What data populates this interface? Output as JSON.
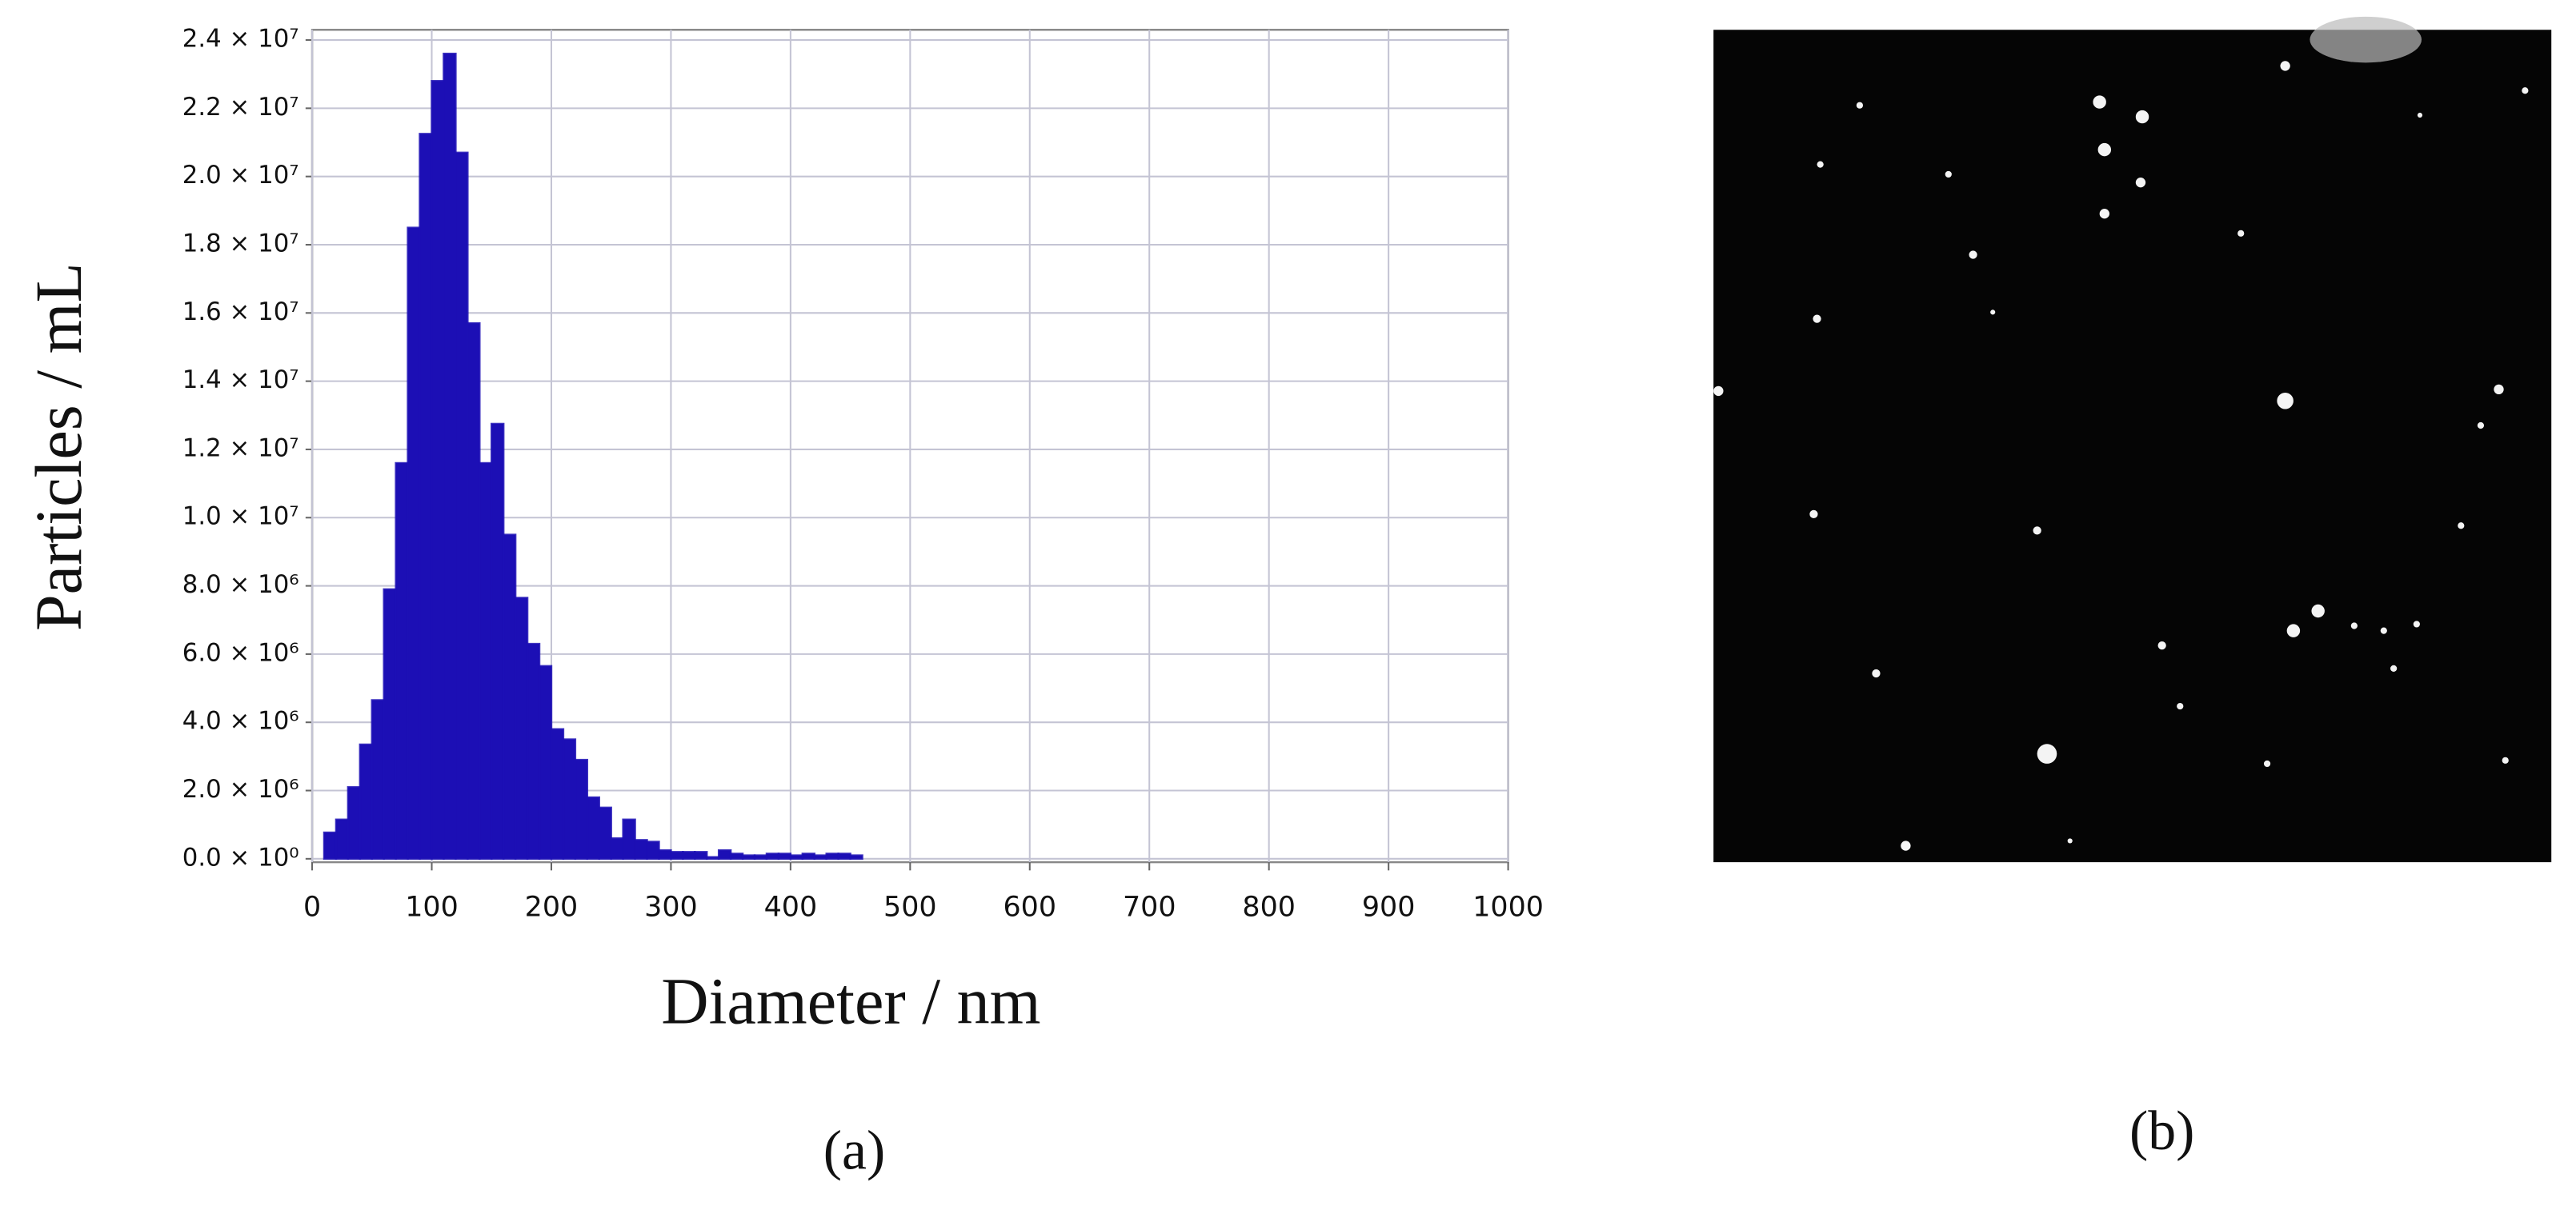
{
  "chart_data": {
    "type": "histogram",
    "ylabel": "Particles / mL",
    "xlabel": "Diameter / nm",
    "caption": "(a)",
    "color": "#1c0fb5",
    "grid": true,
    "xlim": [
      0,
      1000
    ],
    "ylim": [
      -100000,
      24300000
    ],
    "xticks": [
      0,
      100,
      200,
      300,
      400,
      500,
      600,
      700,
      800,
      900,
      1000
    ],
    "yticks": [
      {
        "value": 0,
        "label": "0.0 × 10⁰"
      },
      {
        "value": 2000000,
        "label": "2.0 × 10⁶"
      },
      {
        "value": 4000000,
        "label": "4.0 × 10⁶"
      },
      {
        "value": 6000000,
        "label": "6.0 × 10⁶"
      },
      {
        "value": 8000000,
        "label": "8.0 × 10⁶"
      },
      {
        "value": 10000000,
        "label": "1.0 × 10⁷"
      },
      {
        "value": 12000000,
        "label": "1.2 × 10⁷"
      },
      {
        "value": 14000000,
        "label": "1.4 × 10⁷"
      },
      {
        "value": 16000000,
        "label": "1.6 × 10⁷"
      },
      {
        "value": 18000000,
        "label": "1.8 × 10⁷"
      },
      {
        "value": 20000000,
        "label": "2.0 × 10⁷"
      },
      {
        "value": 22000000,
        "label": "2.2 × 10⁷"
      },
      {
        "value": 24000000,
        "label": "2.4 × 10⁷"
      }
    ],
    "bins": [
      10,
      20,
      30,
      40,
      50,
      60,
      70,
      80,
      90,
      100,
      110,
      120,
      130,
      140,
      150,
      160,
      170,
      180,
      190,
      200,
      210,
      220,
      230,
      240,
      250,
      260,
      270,
      280,
      290,
      300,
      310,
      320,
      330,
      340,
      350,
      360,
      370,
      380,
      390,
      400,
      410,
      420,
      430,
      440,
      450,
      460,
      470,
      480,
      490,
      500,
      510,
      520,
      530,
      540,
      550,
      560,
      570,
      580,
      590,
      600,
      610,
      620,
      630,
      640,
      650,
      660,
      670,
      680,
      690,
      700,
      710,
      720,
      730,
      740,
      750,
      760,
      770,
      780,
      790,
      800,
      810,
      820,
      830,
      840,
      850,
      860,
      870,
      880,
      890,
      900,
      910,
      920,
      930,
      940,
      950,
      960,
      970,
      980,
      990,
      1000
    ],
    "values": [
      770000,
      1150000,
      2100000,
      3350000,
      4650000,
      7900000,
      11600000,
      18500000,
      21250000,
      22800000,
      23600000,
      20700000,
      15700000,
      11600000,
      12750000,
      9500000,
      7650000,
      6300000,
      5650000,
      3800000,
      3500000,
      2900000,
      1800000,
      1500000,
      600000,
      1150000,
      550000,
      500000,
      250000,
      200000,
      200000,
      200000,
      50000,
      250000,
      150000,
      100000,
      100000,
      150000,
      150000,
      100000,
      150000,
      100000,
      150000,
      150000,
      100000,
      0,
      0,
      0,
      0,
      0,
      0,
      0,
      0,
      0,
      0,
      0,
      0,
      0,
      0,
      0,
      0,
      0,
      0,
      0,
      0,
      0,
      0,
      0,
      0,
      0,
      0,
      0,
      0,
      0,
      0,
      0,
      0,
      0,
      0,
      0,
      0,
      0,
      0,
      0,
      0,
      0,
      0,
      0,
      0,
      0,
      0,
      0,
      0,
      0,
      0,
      0,
      0,
      0,
      0
    ]
  },
  "image_panel": {
    "caption": "(b)"
  }
}
